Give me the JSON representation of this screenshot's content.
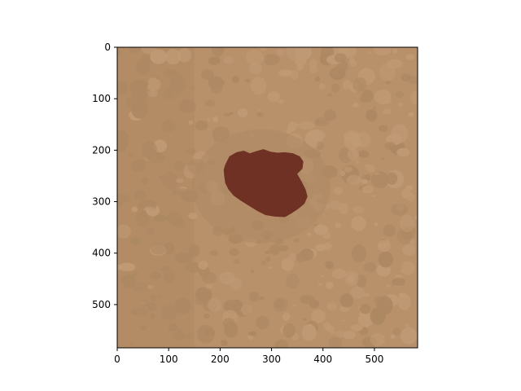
{
  "chart_data": {
    "type": "image",
    "title": "",
    "xlabel": "",
    "ylabel": "",
    "xlim": [
      0,
      584
    ],
    "ylim": [
      584,
      0
    ],
    "x_ticks": [
      0,
      100,
      200,
      300,
      400,
      500
    ],
    "y_ticks": [
      0,
      100,
      200,
      300,
      400,
      500
    ],
    "grid": false,
    "legend": "none",
    "colors": {
      "background_skin": "#b8916b",
      "skin_darker_patches": "#ad8862",
      "skin_lighter_patches": "#c09a74",
      "lesion": "#6e3123",
      "axis": "#000000"
    },
    "regions": [
      {
        "label": "lesion",
        "color_key": "lesion",
        "outline_data_coords": [
          [
            210,
            228
          ],
          [
            218,
            212
          ],
          [
            232,
            204
          ],
          [
            246,
            201
          ],
          [
            258,
            206
          ],
          [
            270,
            202
          ],
          [
            284,
            198
          ],
          [
            298,
            203
          ],
          [
            312,
            205
          ],
          [
            326,
            204
          ],
          [
            342,
            206
          ],
          [
            355,
            212
          ],
          [
            362,
            222
          ],
          [
            360,
            236
          ],
          [
            350,
            246
          ],
          [
            358,
            260
          ],
          [
            366,
            276
          ],
          [
            370,
            290
          ],
          [
            364,
            304
          ],
          [
            352,
            314
          ],
          [
            340,
            322
          ],
          [
            326,
            330
          ],
          [
            306,
            329
          ],
          [
            288,
            326
          ],
          [
            272,
            318
          ],
          [
            256,
            308
          ],
          [
            240,
            298
          ],
          [
            226,
            288
          ],
          [
            216,
            276
          ],
          [
            210,
            264
          ],
          [
            208,
            250
          ],
          [
            207,
            238
          ]
        ]
      }
    ]
  }
}
